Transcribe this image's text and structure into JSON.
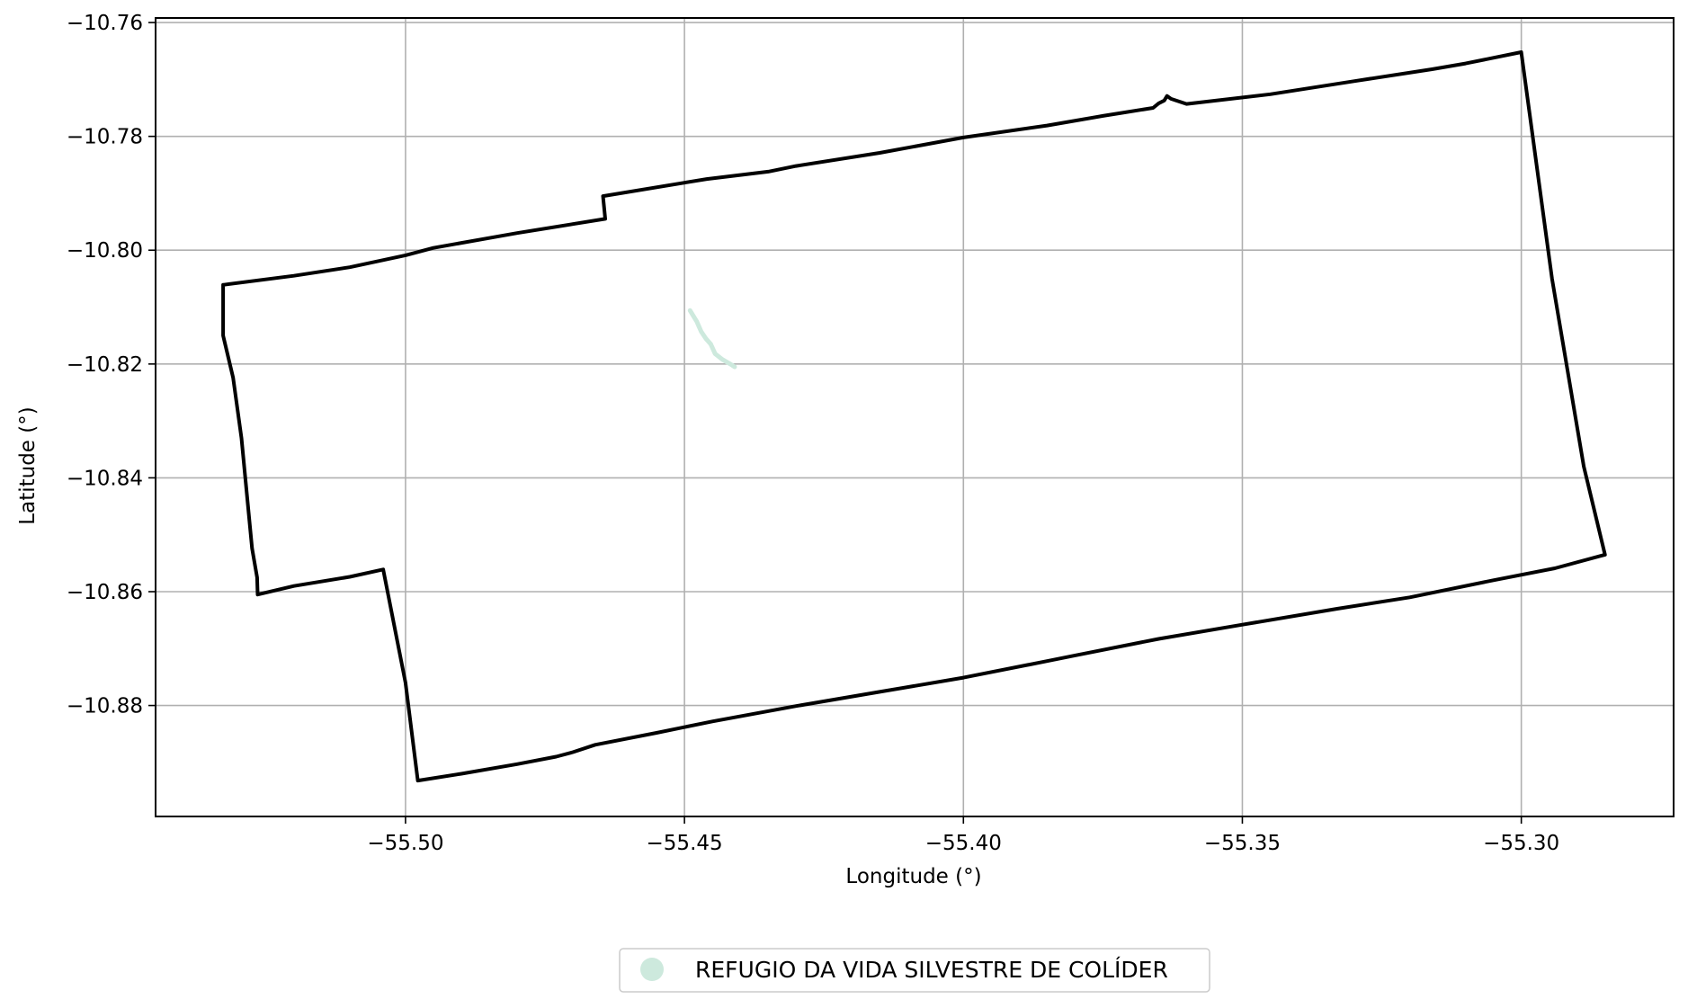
{
  "chart_data": {
    "type": "map",
    "xlabel": "Longitude (°)",
    "ylabel": "Latitude (°)",
    "xlim": [
      -55.5448,
      -55.2727
    ],
    "ylim": [
      -10.8995,
      -10.7592
    ],
    "x_ticks": [
      {
        "value": -55.5,
        "label": "−55.50"
      },
      {
        "value": -55.45,
        "label": "−55.45"
      },
      {
        "value": -55.4,
        "label": "−55.40"
      },
      {
        "value": -55.35,
        "label": "−55.35"
      },
      {
        "value": -55.3,
        "label": "−55.30"
      }
    ],
    "y_ticks": [
      {
        "value": -10.76,
        "label": "−10.76"
      },
      {
        "value": -10.78,
        "label": "−10.78"
      },
      {
        "value": -10.8,
        "label": "−10.80"
      },
      {
        "value": -10.82,
        "label": "−10.82"
      },
      {
        "value": -10.84,
        "label": "−10.84"
      },
      {
        "value": -10.86,
        "label": "−10.86"
      },
      {
        "value": -10.88,
        "label": "−10.88"
      }
    ],
    "grid": true,
    "legend_placement": "bottom-center",
    "layers": [
      {
        "role": "boundary",
        "color": "#000000",
        "coordinates": [
          [
            -55.5327,
            -10.8061
          ],
          [
            -55.5327,
            -10.815
          ],
          [
            -55.5309,
            -10.8224
          ],
          [
            -55.5294,
            -10.833
          ],
          [
            -55.5275,
            -10.8524
          ],
          [
            -55.5266,
            -10.8575
          ],
          [
            -55.5265,
            -10.8605
          ],
          [
            -55.52,
            -10.859
          ],
          [
            -55.51,
            -10.8574
          ],
          [
            -55.504,
            -10.8561
          ],
          [
            -55.5,
            -10.876
          ],
          [
            -55.4978,
            -10.8932
          ],
          [
            -55.49,
            -10.892
          ],
          [
            -55.48,
            -10.8903
          ],
          [
            -55.473,
            -10.889
          ],
          [
            -55.47,
            -10.8882
          ],
          [
            -55.466,
            -10.8869
          ],
          [
            -55.455,
            -10.8848
          ],
          [
            -55.445,
            -10.8828
          ],
          [
            -55.43,
            -10.8801
          ],
          [
            -55.415,
            -10.8776
          ],
          [
            -55.4,
            -10.8751
          ],
          [
            -55.385,
            -10.8722
          ],
          [
            -55.38,
            -10.8712
          ],
          [
            -55.365,
            -10.8683
          ],
          [
            -55.35,
            -10.8658
          ],
          [
            -55.333,
            -10.863
          ],
          [
            -55.32,
            -10.861
          ],
          [
            -55.305,
            -10.858
          ],
          [
            -55.294,
            -10.8559
          ],
          [
            -55.285,
            -10.8535
          ],
          [
            -55.2888,
            -10.838
          ],
          [
            -55.2945,
            -10.805
          ],
          [
            -55.3,
            -10.7652
          ],
          [
            -55.31,
            -10.7672
          ],
          [
            -55.316,
            -10.7682
          ],
          [
            -55.33,
            -10.7703
          ],
          [
            -55.345,
            -10.7726
          ],
          [
            -55.36,
            -10.7743
          ],
          [
            -55.3628,
            -10.7734
          ],
          [
            -55.3635,
            -10.7729
          ],
          [
            -55.364,
            -10.7737
          ],
          [
            -55.365,
            -10.7742
          ],
          [
            -55.366,
            -10.775
          ],
          [
            -55.375,
            -10.7764
          ],
          [
            -55.385,
            -10.7781
          ],
          [
            -55.4,
            -10.7802
          ],
          [
            -55.415,
            -10.7829
          ],
          [
            -55.43,
            -10.7852
          ],
          [
            -55.435,
            -10.7862
          ],
          [
            -55.446,
            -10.7875
          ],
          [
            -55.4646,
            -10.7905
          ],
          [
            -55.4642,
            -10.7945
          ],
          [
            -55.48,
            -10.797
          ],
          [
            -55.495,
            -10.7996
          ],
          [
            -55.5,
            -10.8009
          ],
          [
            -55.51,
            -10.803
          ],
          [
            -55.52,
            -10.8045
          ],
          [
            -55.5327,
            -10.8061
          ]
        ]
      },
      {
        "role": "feature",
        "name": "REFUGIO DA VIDA SILVESTRE DE COLÍDER",
        "color": "#cde9dd",
        "coordinates": [
          [
            -55.449,
            -10.8106
          ],
          [
            -55.4478,
            -10.8125
          ],
          [
            -55.447,
            -10.8143
          ],
          [
            -55.4462,
            -10.8155
          ],
          [
            -55.4453,
            -10.8165
          ],
          [
            -55.4445,
            -10.8182
          ],
          [
            -55.4432,
            -10.8192
          ],
          [
            -55.4418,
            -10.82
          ],
          [
            -55.441,
            -10.8205
          ]
        ]
      }
    ],
    "legend": [
      {
        "label": "REFUGIO DA VIDA SILVESTRE DE COLÍDER",
        "color": "#cde9dd",
        "marker": "circle"
      }
    ]
  }
}
